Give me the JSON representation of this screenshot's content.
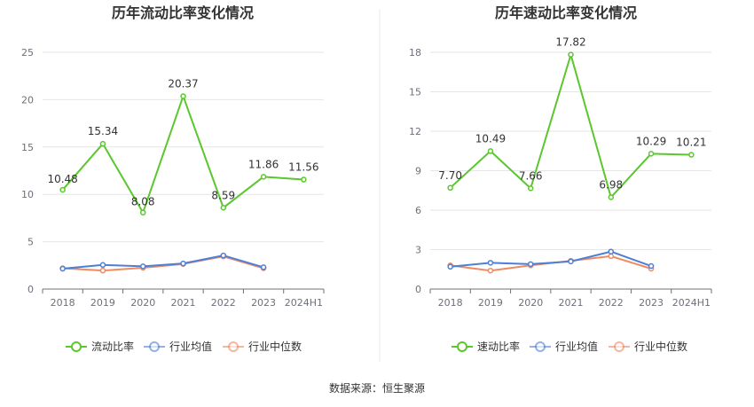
{
  "source": "数据来源：恒生聚源",
  "chart_data": [
    {
      "type": "line",
      "title": "历年流动比率变化情况",
      "categories": [
        "2018",
        "2019",
        "2020",
        "2021",
        "2022",
        "2023",
        "2024H1"
      ],
      "ylim": [
        0,
        25
      ],
      "yticks": [
        0,
        5,
        10,
        15,
        20,
        25
      ],
      "grid": true,
      "legend": "bottom",
      "series": [
        {
          "name": "流动比率",
          "color": "#5ac72e",
          "labels": true,
          "values": [
            10.48,
            15.34,
            8.08,
            20.37,
            8.59,
            11.86,
            11.56
          ]
        },
        {
          "name": "行业均值",
          "color": "#4e7fd6",
          "labels": false,
          "values": [
            2.15,
            2.55,
            2.4,
            2.7,
            3.55,
            2.3,
            null
          ]
        },
        {
          "name": "行业中位数",
          "color": "#f08a61",
          "labels": false,
          "values": [
            2.2,
            1.95,
            2.25,
            2.65,
            3.45,
            2.2,
            null
          ]
        }
      ]
    },
    {
      "type": "line",
      "title": "历年速动比率变化情况",
      "categories": [
        "2018",
        "2019",
        "2020",
        "2021",
        "2022",
        "2023",
        "2024H1"
      ],
      "ylim": [
        0,
        18
      ],
      "yticks": [
        0,
        3,
        6,
        9,
        12,
        15,
        18
      ],
      "grid": true,
      "legend": "bottom",
      "series": [
        {
          "name": "速动比率",
          "color": "#5ac72e",
          "labels": true,
          "values": [
            7.7,
            10.49,
            7.66,
            17.82,
            6.98,
            10.29,
            10.21
          ]
        },
        {
          "name": "行业均值",
          "color": "#4e7fd6",
          "labels": false,
          "values": [
            1.7,
            2.0,
            1.9,
            2.1,
            2.85,
            1.75,
            null
          ]
        },
        {
          "name": "行业中位数",
          "color": "#f08a61",
          "labels": false,
          "values": [
            1.8,
            1.4,
            1.8,
            2.15,
            2.5,
            1.55,
            null
          ]
        }
      ]
    }
  ]
}
